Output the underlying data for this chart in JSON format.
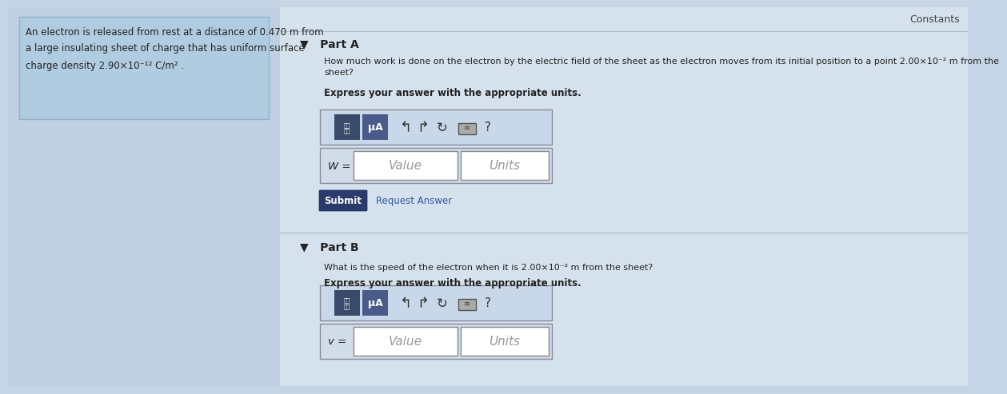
{
  "bg_color": "#c5d5e5",
  "left_panel_bg": "#c0d0e2",
  "left_box_bg": "#b0cce0",
  "right_panel_bg": "#d5e2ee",
  "title": "Constants",
  "left_text_line1": "An electron is released from rest at a distance of 0.470 m from",
  "left_text_line2": "a large insulating sheet of charge that has uniform surface",
  "left_text_line3": "charge density 2.90×10⁻¹² C/m² .",
  "partA_label": "▼   Part A",
  "partA_q1": "How much work is done on the electron by the electric field of the sheet as the electron moves from its initial position to a point 2.00×10⁻² m from the",
  "partA_q2": "sheet?",
  "partA_express": "Express your answer with the appropriate units.",
  "partA_input_label": "W =",
  "partA_value": "Value",
  "partA_units": "Units",
  "submit_label": "Submit",
  "request_label": "Request Answer",
  "partB_label": "▼   Part B",
  "partB_q": "What is the speed of the electron when it is 2.00×10⁻² m from the sheet?",
  "partB_express": "Express your answer with the appropriate units.",
  "partB_input_label": "v =",
  "partB_value": "Value",
  "partB_units": "Units",
  "icon1_color": "#3a4a6a",
  "icon2_color": "#4a5a8a",
  "toolbar_bg": "#c8d8e8",
  "input_bg": "#d0dce8",
  "input_box_bg": "#ffffff",
  "submit_bg": "#2a3a6a",
  "submit_text": "#ffffff",
  "request_text": "#3355aa",
  "separator_color": "#aabbcc",
  "text_dark": "#222222",
  "text_gray": "#999999",
  "constants_color": "#444444",
  "partlabel_color": "#222222",
  "express_color": "#222222"
}
